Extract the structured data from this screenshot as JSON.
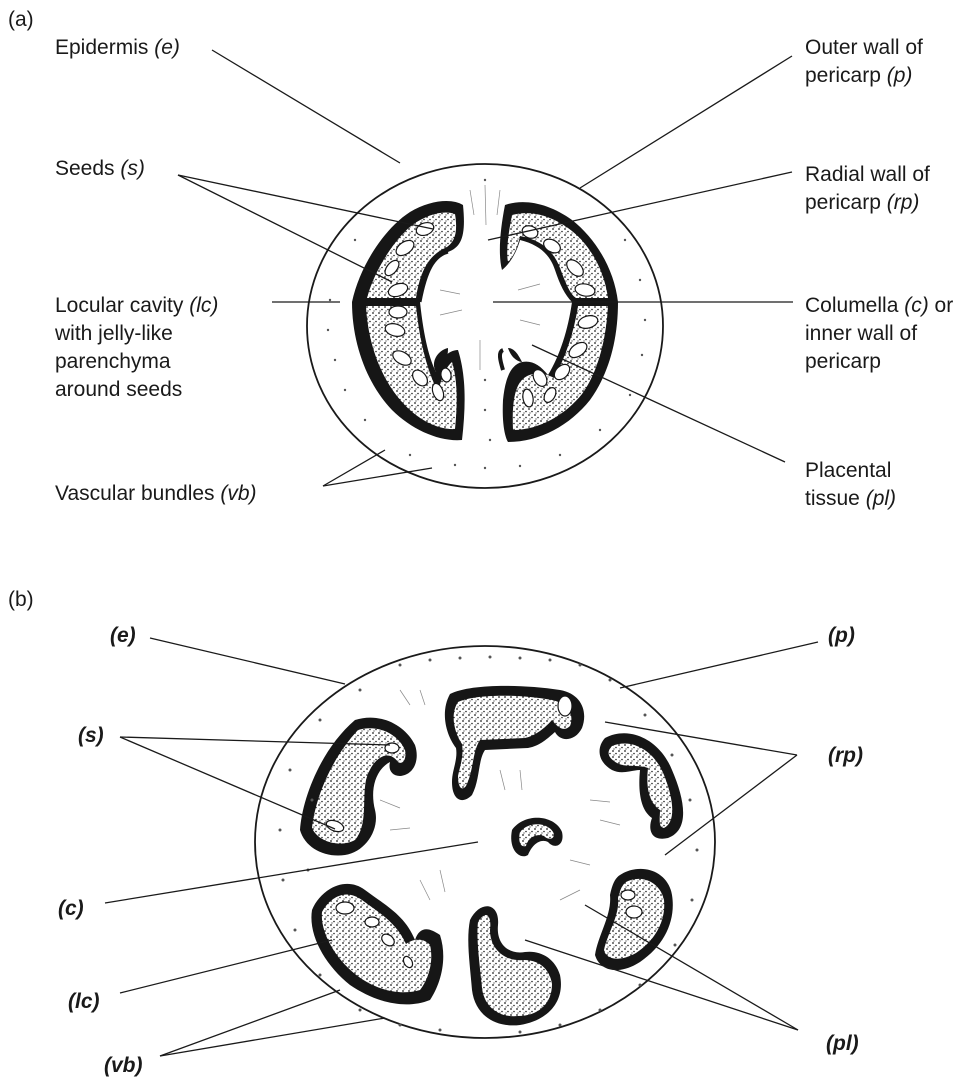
{
  "panel_a": {
    "id": "(a)",
    "epidermis": {
      "text": "Epidermis ",
      "abbr": "(e)"
    },
    "seeds": {
      "text": "Seeds ",
      "abbr": "(s)"
    },
    "locular": {
      "line1": "Locular cavity ",
      "abbr": "(lc)",
      "line2": "with jelly-like",
      "line3": "parenchyma",
      "line4": "around seeds"
    },
    "vascular": {
      "text": "Vascular bundles ",
      "abbr": "(vb)"
    },
    "outer_wall": {
      "line1": "Outer wall of",
      "line2": "pericarp ",
      "abbr": "(p)"
    },
    "radial_wall": {
      "line1": "Radial wall of",
      "line2": "pericarp ",
      "abbr": "(rp)"
    },
    "columella": {
      "line1": "Columella ",
      "abbr": "(c)",
      "line1_end": " or",
      "line2": "inner wall of",
      "line3": "pericarp"
    },
    "placental": {
      "line1": "Placental",
      "line2": "tissue ",
      "abbr": "(pl)"
    }
  },
  "panel_b": {
    "id": "(b)",
    "e": "(e)",
    "s": "(s)",
    "c": "(c)",
    "lc": "(lc)",
    "vb": "(vb)",
    "p": "(p)",
    "rp": "(rp)",
    "pl": "(pl)"
  }
}
